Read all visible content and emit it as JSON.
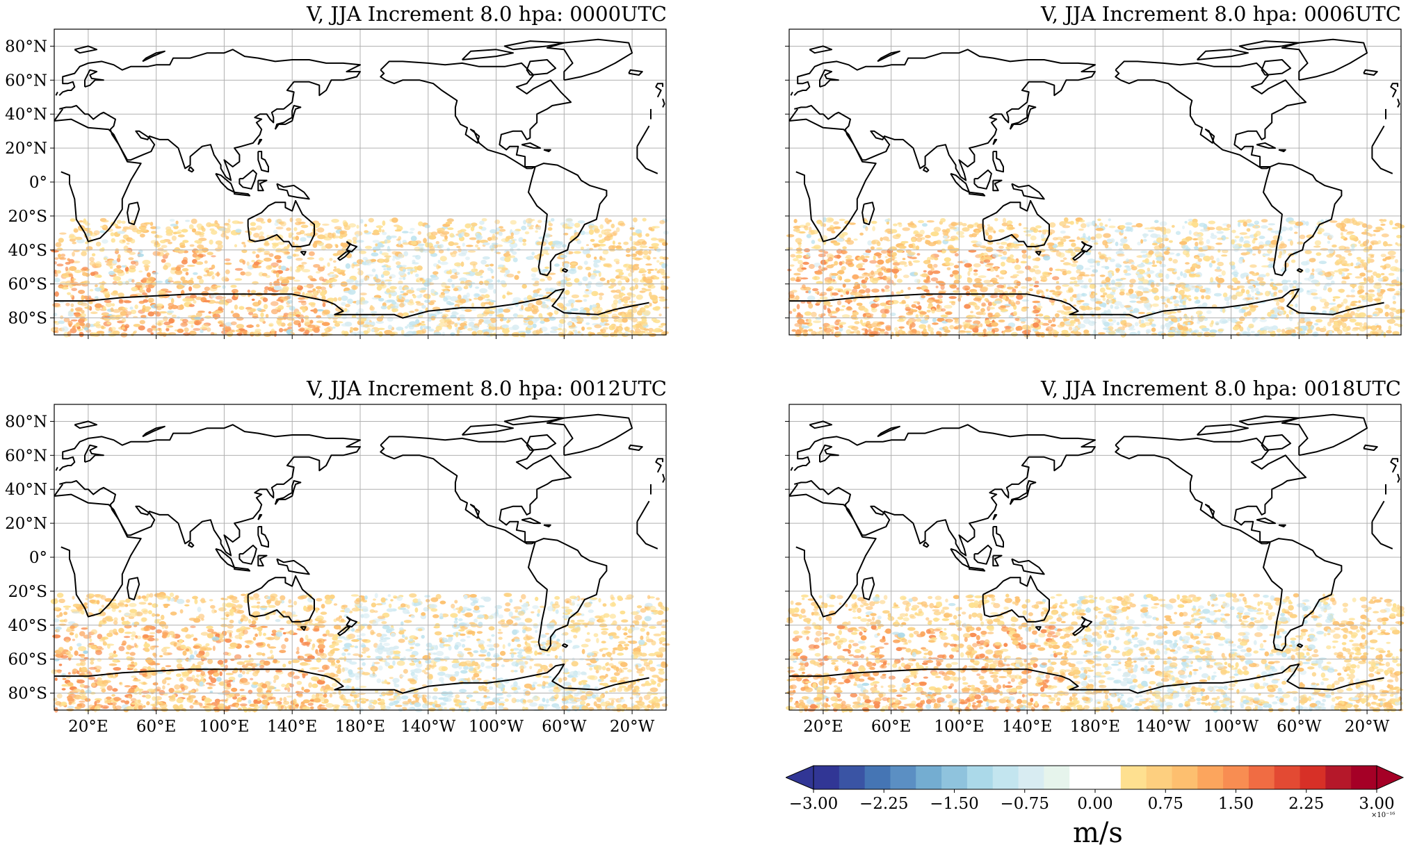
{
  "panels": [
    {
      "title": "V, JJA Increment 8.0 hpa: 0000UTC",
      "show_xlabels": false,
      "seed": 11
    },
    {
      "title": "V, JJA Increment 8.0 hpa: 0006UTC",
      "show_xlabels": false,
      "seed": 23
    },
    {
      "title": "V, JJA Increment 8.0 hpa: 0012UTC",
      "show_xlabels": true,
      "seed": 37
    },
    {
      "title": "V, JJA Increment 8.0 hpa: 0018UTC",
      "show_xlabels": true,
      "seed": 51
    }
  ],
  "map": {
    "projection": "PlateCarree",
    "central_longitude": 180,
    "lon_extent": [
      0,
      360
    ],
    "lat_extent": [
      -90,
      90
    ],
    "lat_ticks": [
      {
        "value": 80,
        "label": "80°N"
      },
      {
        "value": 60,
        "label": "60°N"
      },
      {
        "value": 40,
        "label": "40°N"
      },
      {
        "value": 20,
        "label": "20°N"
      },
      {
        "value": 0,
        "label": "0°"
      },
      {
        "value": -20,
        "label": "20°S"
      },
      {
        "value": -40,
        "label": "40°S"
      },
      {
        "value": -60,
        "label": "60°S"
      },
      {
        "value": -80,
        "label": "80°S"
      }
    ],
    "lon_ticks": [
      {
        "value": 20,
        "label": "20°E"
      },
      {
        "value": 60,
        "label": "60°E"
      },
      {
        "value": 100,
        "label": "100°E"
      },
      {
        "value": 140,
        "label": "140°E"
      },
      {
        "value": 180,
        "label": "180°E"
      },
      {
        "value": 220,
        "label": "140°W"
      },
      {
        "value": 260,
        "label": "100°W"
      },
      {
        "value": 300,
        "label": "60°W"
      },
      {
        "value": 340,
        "label": "20°W"
      }
    ],
    "grid": true,
    "coastline_color": "#000000",
    "gridline_color": "#b0b0b0"
  },
  "colorbar": {
    "cmap": "RdYlBu_r",
    "levels_min": -3.0,
    "levels_max": 3.0,
    "levels_step": 0.25,
    "extend": "both",
    "ticks": [
      "−3.00",
      "−2.25",
      "−1.50",
      "−0.75",
      "0.00",
      "0.75",
      "1.50",
      "2.25",
      "3.00"
    ],
    "tick_values": [
      -3.0,
      -2.25,
      -1.5,
      -0.75,
      0.0,
      0.75,
      1.5,
      2.25,
      3.0
    ],
    "multiplier": "×10⁻¹⁶",
    "label": "m/s",
    "colors": [
      "#313695",
      "#3a54a4",
      "#4575b4",
      "#5b8fc3",
      "#74add1",
      "#8fc3dd",
      "#abd9e9",
      "#c3e5ef",
      "#d8ecf2",
      "#e6f4ec",
      "#ffffff",
      "#ffffff",
      "#fee090",
      "#fdcf7f",
      "#fdbf6f",
      "#fca55d",
      "#f88d52",
      "#f06c43",
      "#e34a33",
      "#d73027",
      "#b5182a",
      "#a50026"
    ],
    "under_color": "#313695",
    "over_color": "#a50026"
  },
  "field_colors": {
    "positive": [
      "#fee090",
      "#fdd383",
      "#fdc271",
      "#fca55d",
      "#f88d52"
    ],
    "negative": [
      "#d8ecf2",
      "#c3e5ef",
      "#abd9e9"
    ]
  }
}
